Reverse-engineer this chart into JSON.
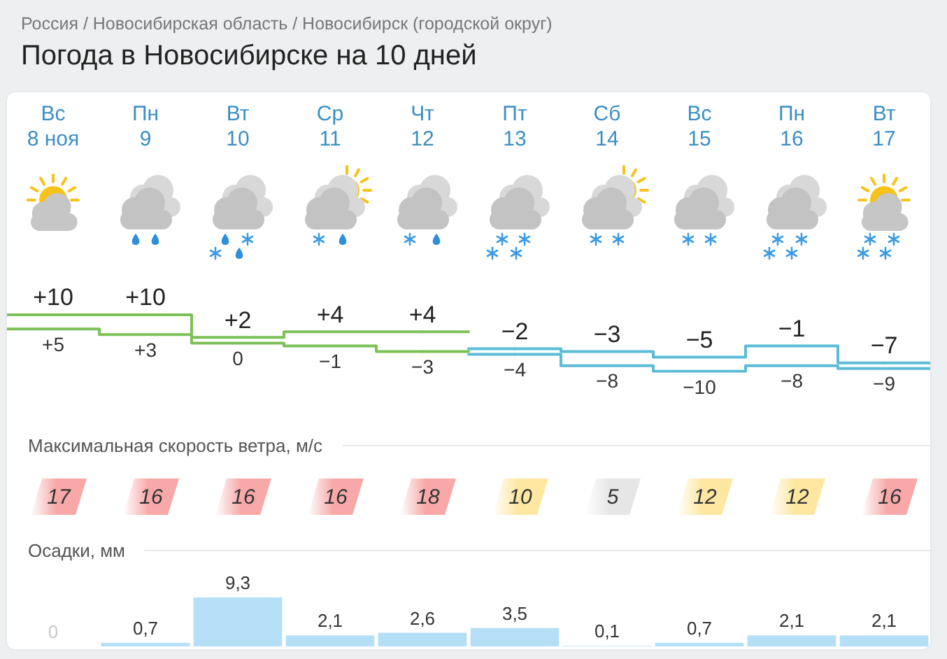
{
  "chart_data": [
    {
      "type": "step",
      "title": "Погода в Новосибирске на 10 дней",
      "subtitle": "Россия / Новосибирская область / Новосибирск (городской округ)",
      "categories": [
        "Вс\n8 ноя",
        "Пн\n9",
        "Вт\n10",
        "Ср\n11",
        "Чт\n12",
        "Пт\n13",
        "Сб\n14",
        "Вс\n15",
        "Пн\n16",
        "Вт\n17"
      ],
      "marker": "none",
      "series": [
        {
          "color": "#7cc157",
          "values": [
            10,
            10,
            2,
            4,
            4,
            null,
            null,
            null,
            null,
            null
          ],
          "value_labels": [
            "+10",
            "+10",
            "+2",
            "+4",
            "+4",
            null,
            null,
            null,
            null,
            null
          ]
        },
        {
          "color": "#7cc157",
          "values": [
            5,
            3,
            0,
            -1,
            -3,
            null,
            null,
            null,
            null,
            null
          ],
          "value_labels": [
            "+5",
            "+3",
            "0",
            "−1",
            "−3",
            null,
            null,
            null,
            null,
            null
          ]
        },
        {
          "color": "#5bbcd5",
          "values": [
            null,
            null,
            null,
            null,
            null,
            -2,
            -3,
            -5,
            -1,
            -7
          ],
          "value_labels": [
            null,
            null,
            null,
            null,
            null,
            "−2",
            "−3",
            "−5",
            "−1",
            "−7"
          ]
        },
        {
          "color": "#5bbcd5",
          "values": [
            null,
            null,
            null,
            null,
            null,
            -4,
            -8,
            -10,
            -8,
            -9
          ],
          "value_labels": [
            null,
            null,
            null,
            null,
            null,
            "−4",
            "−8",
            "−10",
            "−8",
            "−9"
          ]
        }
      ]
    },
    {
      "type": "other",
      "title": "Максимальная скорость ветра, м/с",
      "categories": [
        null,
        null,
        null,
        null,
        null,
        null,
        null,
        null,
        null,
        null
      ],
      "values": [
        17,
        16,
        16,
        16,
        18,
        10,
        5,
        12,
        12,
        16
      ],
      "colors": [
        "#f8a8a8",
        "#f8a8a8",
        "#f8a8a8",
        "#f8a8a8",
        "#f8a8a8",
        "#fde7a1",
        "#e6e6e6",
        "#fde7a1",
        "#fde7a1",
        "#f8a8a8"
      ],
      "data_labels": true
    },
    {
      "type": "bar",
      "title": "Осадки, мм",
      "categories": [
        null,
        null,
        null,
        null,
        null,
        null,
        null,
        null,
        null,
        null
      ],
      "values": [
        0,
        0.7,
        9.3,
        2.1,
        2.6,
        3.5,
        0.1,
        0.7,
        2.1,
        2.1
      ],
      "value_labels": [
        "0",
        "0,7",
        "9,3",
        "2,1",
        "2,6",
        "3,5",
        "0,1",
        "0,7",
        "2,1",
        "2,1"
      ],
      "color": "#b5dff7"
    }
  ]
}
